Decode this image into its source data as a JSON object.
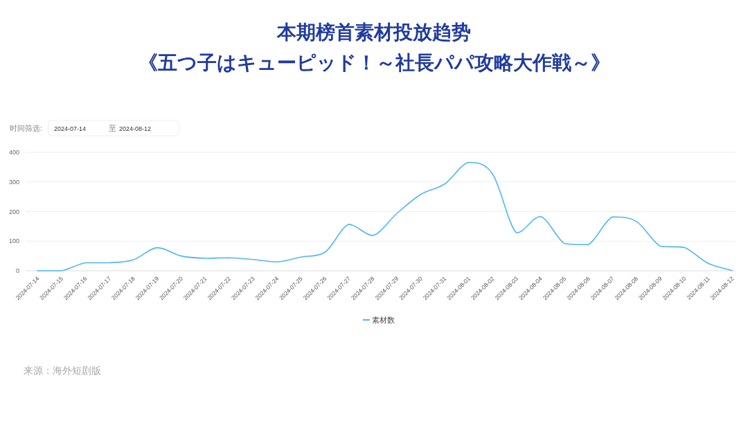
{
  "chart_data": {
    "type": "line",
    "title": "本期榜首素材投放趋势",
    "subtitle": "《五つ子はキューピッド！～社長パパ攻略大作戦～》",
    "categories": [
      "2024-07-14",
      "2024-07-15",
      "2024-07-16",
      "2024-07-17",
      "2024-07-18",
      "2024-07-19",
      "2024-07-20",
      "2024-07-21",
      "2024-07-22",
      "2024-07-23",
      "2024-07-24",
      "2024-07-25",
      "2024-07-26",
      "2024-07-27",
      "2024-07-28",
      "2024-07-29",
      "2024-07-30",
      "2024-07-31",
      "2024-08-01",
      "2024-08-02",
      "2024-08-03",
      "2024-08-04",
      "2024-08-05",
      "2024-08-06",
      "2024-08-07",
      "2024-08-08",
      "2024-08-09",
      "2024-08-10",
      "2024-08-11",
      "2024-08-12"
    ],
    "series": [
      {
        "name": "素材数",
        "color": "#4fb6f7",
        "values": [
          0,
          0,
          27,
          27,
          37,
          78,
          50,
          42,
          44,
          38,
          30,
          46,
          62,
          157,
          119,
          193,
          258,
          293,
          366,
          327,
          128,
          183,
          92,
          88,
          182,
          167,
          83,
          79,
          25,
          1
        ]
      }
    ],
    "ylim": [
      0,
      400
    ],
    "yticks": [
      0,
      100,
      200,
      300,
      400
    ],
    "grid": "y",
    "legend": "bottom",
    "marker": "none",
    "line_style": "solid",
    "annotations": [
      "时间筛选:",
      "2024-07-14",
      "至",
      "2024-08-12",
      "来源：海外短剧版"
    ]
  }
}
